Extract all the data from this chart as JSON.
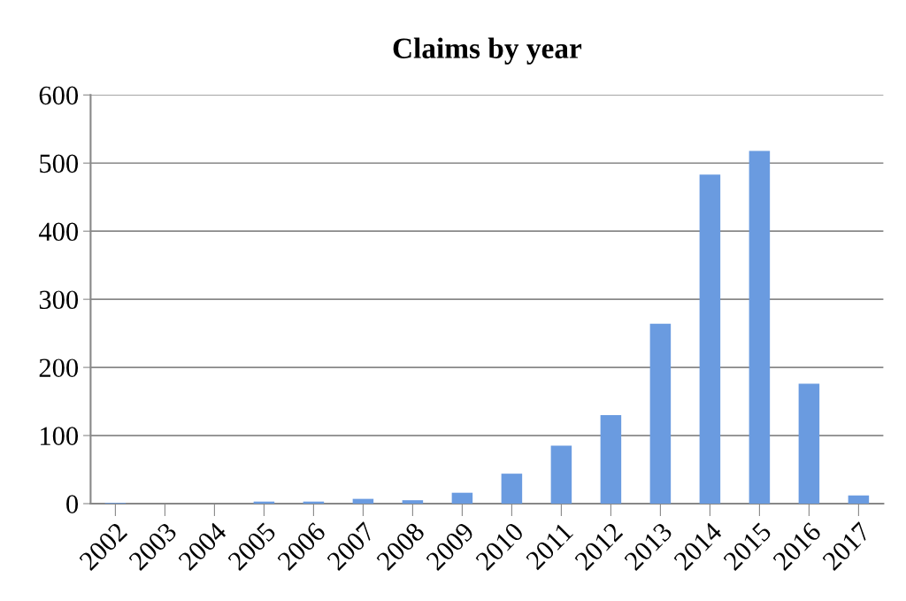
{
  "chart_data": {
    "type": "bar",
    "title": "Claims by year",
    "categories": [
      "2002",
      "2003",
      "2004",
      "2005",
      "2006",
      "2007",
      "2008",
      "2009",
      "2010",
      "2011",
      "2012",
      "2013",
      "2014",
      "2015",
      "2016",
      "2017"
    ],
    "values": [
      1,
      0,
      0,
      3,
      3,
      7,
      5,
      16,
      44,
      85,
      130,
      264,
      483,
      518,
      176,
      12
    ],
    "color": "#6a9be0",
    "ylim": [
      0,
      600
    ],
    "yticks": [
      0,
      100,
      200,
      300,
      400,
      500,
      600
    ],
    "grid": "y",
    "legend": false
  }
}
